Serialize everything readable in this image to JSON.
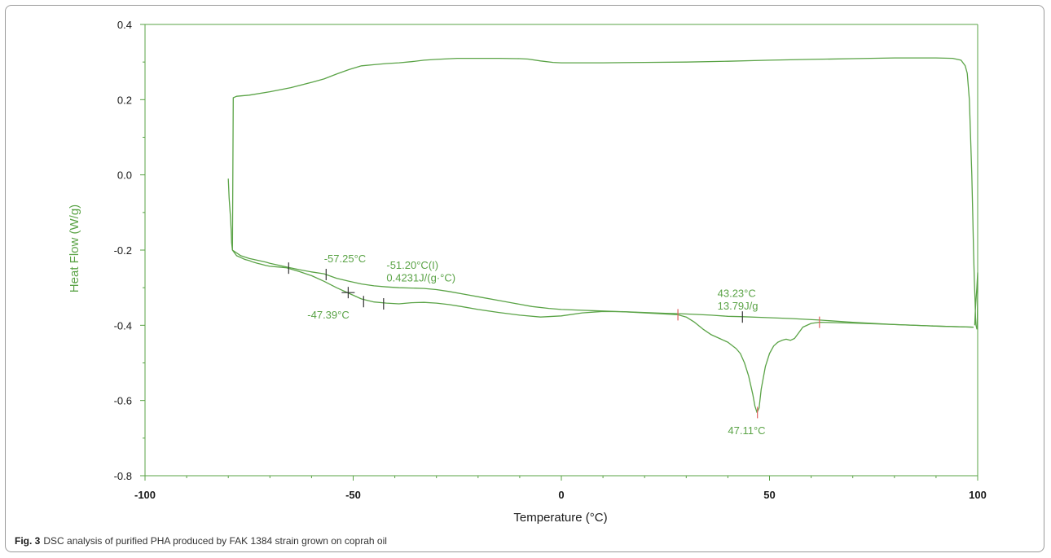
{
  "chart_data": {
    "type": "line",
    "xlabel": "Temperature (°C)",
    "ylabel": "Heat Flow (W/g)",
    "xlim": [
      -100,
      100
    ],
    "ylim": [
      -0.8,
      0.4
    ],
    "xticks": [
      -100,
      -50,
      0,
      50,
      100
    ],
    "yticks": [
      0.4,
      0.2,
      0.0,
      -0.2,
      -0.4,
      -0.6,
      -0.8
    ],
    "ytick_labels": [
      "0.4",
      "0.2",
      "0.0",
      "-0.2",
      "-0.4",
      "-0.6",
      "-0.8"
    ],
    "grid": false,
    "line_color": "#5aa346",
    "axis_color": "#5aa346",
    "marker_color_black": "#333333",
    "marker_color_red": "#e06060",
    "series": [
      {
        "x": [
          -80.0,
          -79.8,
          -79.5,
          -79.3,
          -79.2,
          -79.0,
          -78.0,
          -77.0,
          -76.0,
          -75.0,
          -74.0,
          -73.0,
          -72.0,
          -71.0,
          -70.0,
          -66.0,
          -63.0,
          -60.0,
          -57.0,
          -54.0,
          -51.0,
          -48.0,
          -45.0,
          -42.0,
          -39.0,
          -36.0,
          -33.0,
          -30.0,
          -27.0,
          -24.0,
          -20.0,
          -15.0,
          -10.0,
          -5.0,
          0.0,
          5.0,
          10.0,
          15.0,
          20.0,
          25.0,
          28.0,
          30.0,
          32.0,
          34.0,
          36.0,
          38.0,
          40.0,
          42.0,
          43.0,
          44.0,
          45.0,
          46.0,
          46.5,
          47.0,
          47.5,
          48.0,
          49.0,
          50.0,
          51.0,
          52.0,
          53.0,
          54.0,
          55.0,
          56.0,
          57.0,
          58.0,
          60.0,
          62.0,
          70.0,
          80.0,
          90.0,
          99.0
        ],
        "y": [
          -0.01,
          -0.06,
          -0.11,
          -0.15,
          -0.18,
          -0.2,
          -0.215,
          -0.22,
          -0.225,
          -0.228,
          -0.232,
          -0.235,
          -0.238,
          -0.241,
          -0.243,
          -0.247,
          -0.257,
          -0.268,
          -0.283,
          -0.3,
          -0.315,
          -0.33,
          -0.338,
          -0.341,
          -0.343,
          -0.34,
          -0.339,
          -0.341,
          -0.345,
          -0.35,
          -0.358,
          -0.366,
          -0.373,
          -0.378,
          -0.375,
          -0.367,
          -0.363,
          -0.364,
          -0.367,
          -0.37,
          -0.372,
          -0.378,
          -0.392,
          -0.41,
          -0.425,
          -0.435,
          -0.445,
          -0.462,
          -0.475,
          -0.5,
          -0.535,
          -0.585,
          -0.615,
          -0.632,
          -0.62,
          -0.57,
          -0.51,
          -0.475,
          -0.455,
          -0.445,
          -0.44,
          -0.437,
          -0.44,
          -0.435,
          -0.42,
          -0.405,
          -0.395,
          -0.392,
          -0.394,
          -0.398,
          -0.402,
          -0.405
        ]
      },
      {
        "x": [
          -79.0,
          -77.0,
          -75.0,
          -73.0,
          -71.0,
          -70.0,
          -66.0,
          -63.0,
          -60.0,
          -57.0,
          -54.0,
          -51.0,
          -48.0,
          -45.0,
          -42.0,
          -39.0,
          -36.0,
          -33.0,
          -30.0,
          -27.0,
          -23.0,
          -19.0,
          -15.0,
          -11.0,
          -7.0,
          -3.0,
          0.0,
          5.0,
          10.0,
          15.0,
          20.0,
          25.0,
          28.0,
          32.0,
          36.0,
          40.0,
          43.0,
          48.0,
          55.0,
          62.0,
          70.0,
          80.0,
          90.0,
          99.0
        ],
        "y": [
          -0.2,
          -0.215,
          -0.222,
          -0.227,
          -0.232,
          -0.235,
          -0.245,
          -0.252,
          -0.258,
          -0.263,
          -0.275,
          -0.283,
          -0.29,
          -0.295,
          -0.298,
          -0.3,
          -0.301,
          -0.302,
          -0.305,
          -0.31,
          -0.318,
          -0.326,
          -0.334,
          -0.342,
          -0.35,
          -0.355,
          -0.358,
          -0.36,
          -0.362,
          -0.364,
          -0.366,
          -0.368,
          -0.369,
          -0.371,
          -0.373,
          -0.376,
          -0.377,
          -0.379,
          -0.382,
          -0.386,
          -0.392,
          -0.398,
          -0.402,
          -0.405
        ]
      },
      {
        "x": [
          -79.0,
          -78.8,
          -78.0,
          -75.0,
          -70.0,
          -65.0,
          -60.0,
          -57.0,
          -54.0,
          -51.0,
          -48.0,
          -45.0,
          -42.0,
          -39.0,
          -36.0,
          -33.0,
          -30.0,
          -25.0,
          -20.0,
          -15.0,
          -10.0,
          -8.0,
          -5.0,
          -2.0,
          0.0,
          5.0,
          10.0,
          20.0,
          30.0,
          40.0,
          50.0,
          60.0,
          70.0,
          80.0,
          90.0,
          94.0,
          96.0,
          97.0,
          97.5,
          98.0,
          98.3,
          98.6,
          98.8,
          99.0,
          99.2,
          99.4,
          99.5,
          99.6,
          99.8,
          99.9,
          100.0,
          100.0,
          99.8,
          99.5,
          99.3
        ],
        "y": [
          -0.2,
          0.205,
          0.209,
          0.212,
          0.221,
          0.232,
          0.246,
          0.255,
          0.268,
          0.28,
          0.29,
          0.293,
          0.296,
          0.298,
          0.301,
          0.305,
          0.307,
          0.31,
          0.31,
          0.31,
          0.309,
          0.308,
          0.303,
          0.299,
          0.298,
          0.298,
          0.298,
          0.299,
          0.3,
          0.302,
          0.305,
          0.307,
          0.309,
          0.311,
          0.311,
          0.31,
          0.305,
          0.29,
          0.27,
          0.2,
          0.1,
          0.0,
          -0.1,
          -0.2,
          -0.28,
          -0.34,
          -0.38,
          -0.4,
          -0.41,
          -0.405,
          -0.3,
          -0.26,
          -0.3,
          -0.35,
          -0.4
        ]
      }
    ],
    "markers": [
      {
        "x": -65.5,
        "y": -0.248,
        "color": "black"
      },
      {
        "x": -56.5,
        "y": -0.265,
        "color": "black"
      },
      {
        "x": -51.2,
        "y": -0.313,
        "color": "black"
      },
      {
        "x": -47.5,
        "y": -0.337,
        "color": "black"
      },
      {
        "x": -42.7,
        "y": -0.343,
        "color": "black"
      },
      {
        "x": 28.0,
        "y": -0.372,
        "color": "red"
      },
      {
        "x": 43.5,
        "y": -0.378,
        "color": "black"
      },
      {
        "x": 47.1,
        "y": -0.632,
        "color": "red"
      },
      {
        "x": 62.0,
        "y": -0.392,
        "color": "red"
      }
    ],
    "annotations": [
      {
        "text": "-57.25°C",
        "x": -57.0,
        "y": -0.232
      },
      {
        "text": "-51.20°C(I)",
        "x": -42.0,
        "y": -0.25
      },
      {
        "text": "0.4231J/(g·°C)",
        "x": -42.0,
        "y": -0.283
      },
      {
        "text": "-47.39°C",
        "x": -61.0,
        "y": -0.382
      },
      {
        "text": "43.23°C",
        "x": 37.5,
        "y": -0.325
      },
      {
        "text": "13.79J/g",
        "x": 37.5,
        "y": -0.358
      },
      {
        "text": "47.11°C",
        "x": 40.0,
        "y": -0.69
      }
    ]
  },
  "caption": {
    "label": "Fig. 3",
    "text": "DSC analysis of purified PHA produced by FAK 1384 strain grown on coprah oil"
  }
}
